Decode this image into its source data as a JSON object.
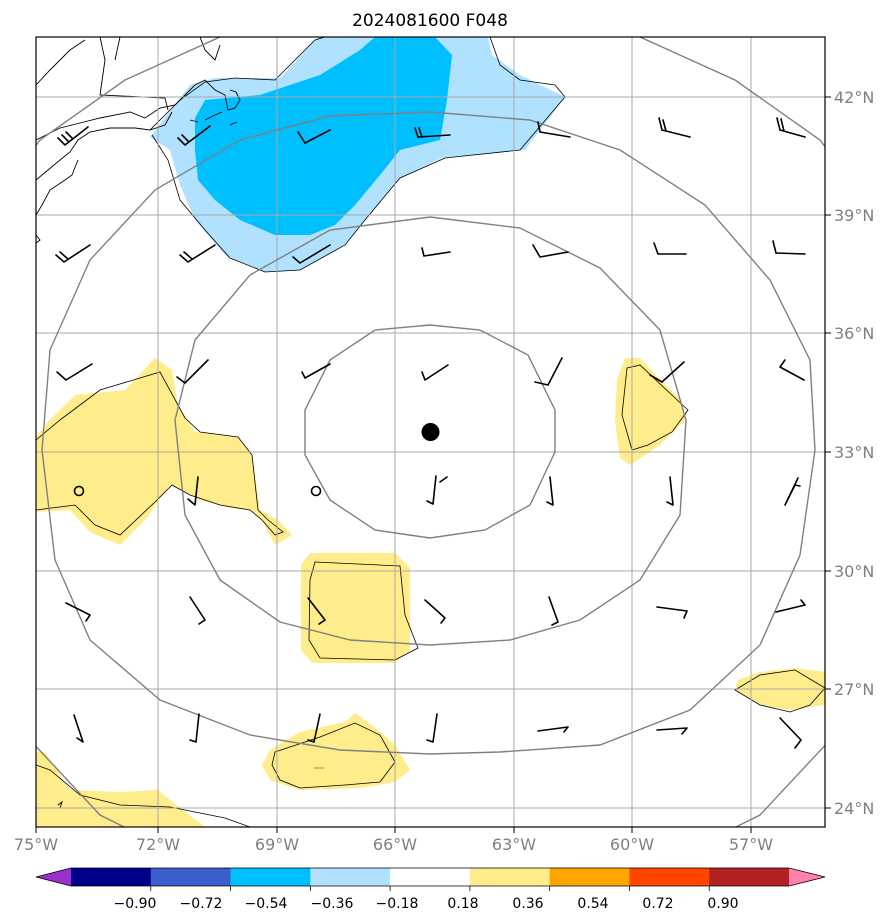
{
  "title": "2024081600 F048",
  "longitude_labels": [
    "75°W",
    "72°W",
    "69°W",
    "66°W",
    "63°W",
    "60°W",
    "57°W"
  ],
  "latitude_labels": [
    "42°N",
    "39°N",
    "36°N",
    "33°N",
    "30°N",
    "27°N",
    "24°N"
  ],
  "colorbar": {
    "tick_labels": [
      "−0.90",
      "−0.72",
      "−0.54",
      "−0.36",
      "−0.18",
      "0.18",
      "0.36",
      "0.54",
      "0.72",
      "0.90"
    ],
    "colors": [
      "#9932cc",
      "#00008b",
      "#3a5fcd",
      "#00bfff",
      "#b0e2ff",
      "#ffffff",
      "#ffec8b",
      "#ffa500",
      "#ff4500",
      "#b22222",
      "#ff82ab"
    ]
  },
  "chart_data": {
    "type": "map",
    "xlim": [
      -75,
      -55
    ],
    "ylim": [
      23.5,
      43.5
    ],
    "storm_center": {
      "lon": -65.0,
      "lat": 33.5
    }
  }
}
